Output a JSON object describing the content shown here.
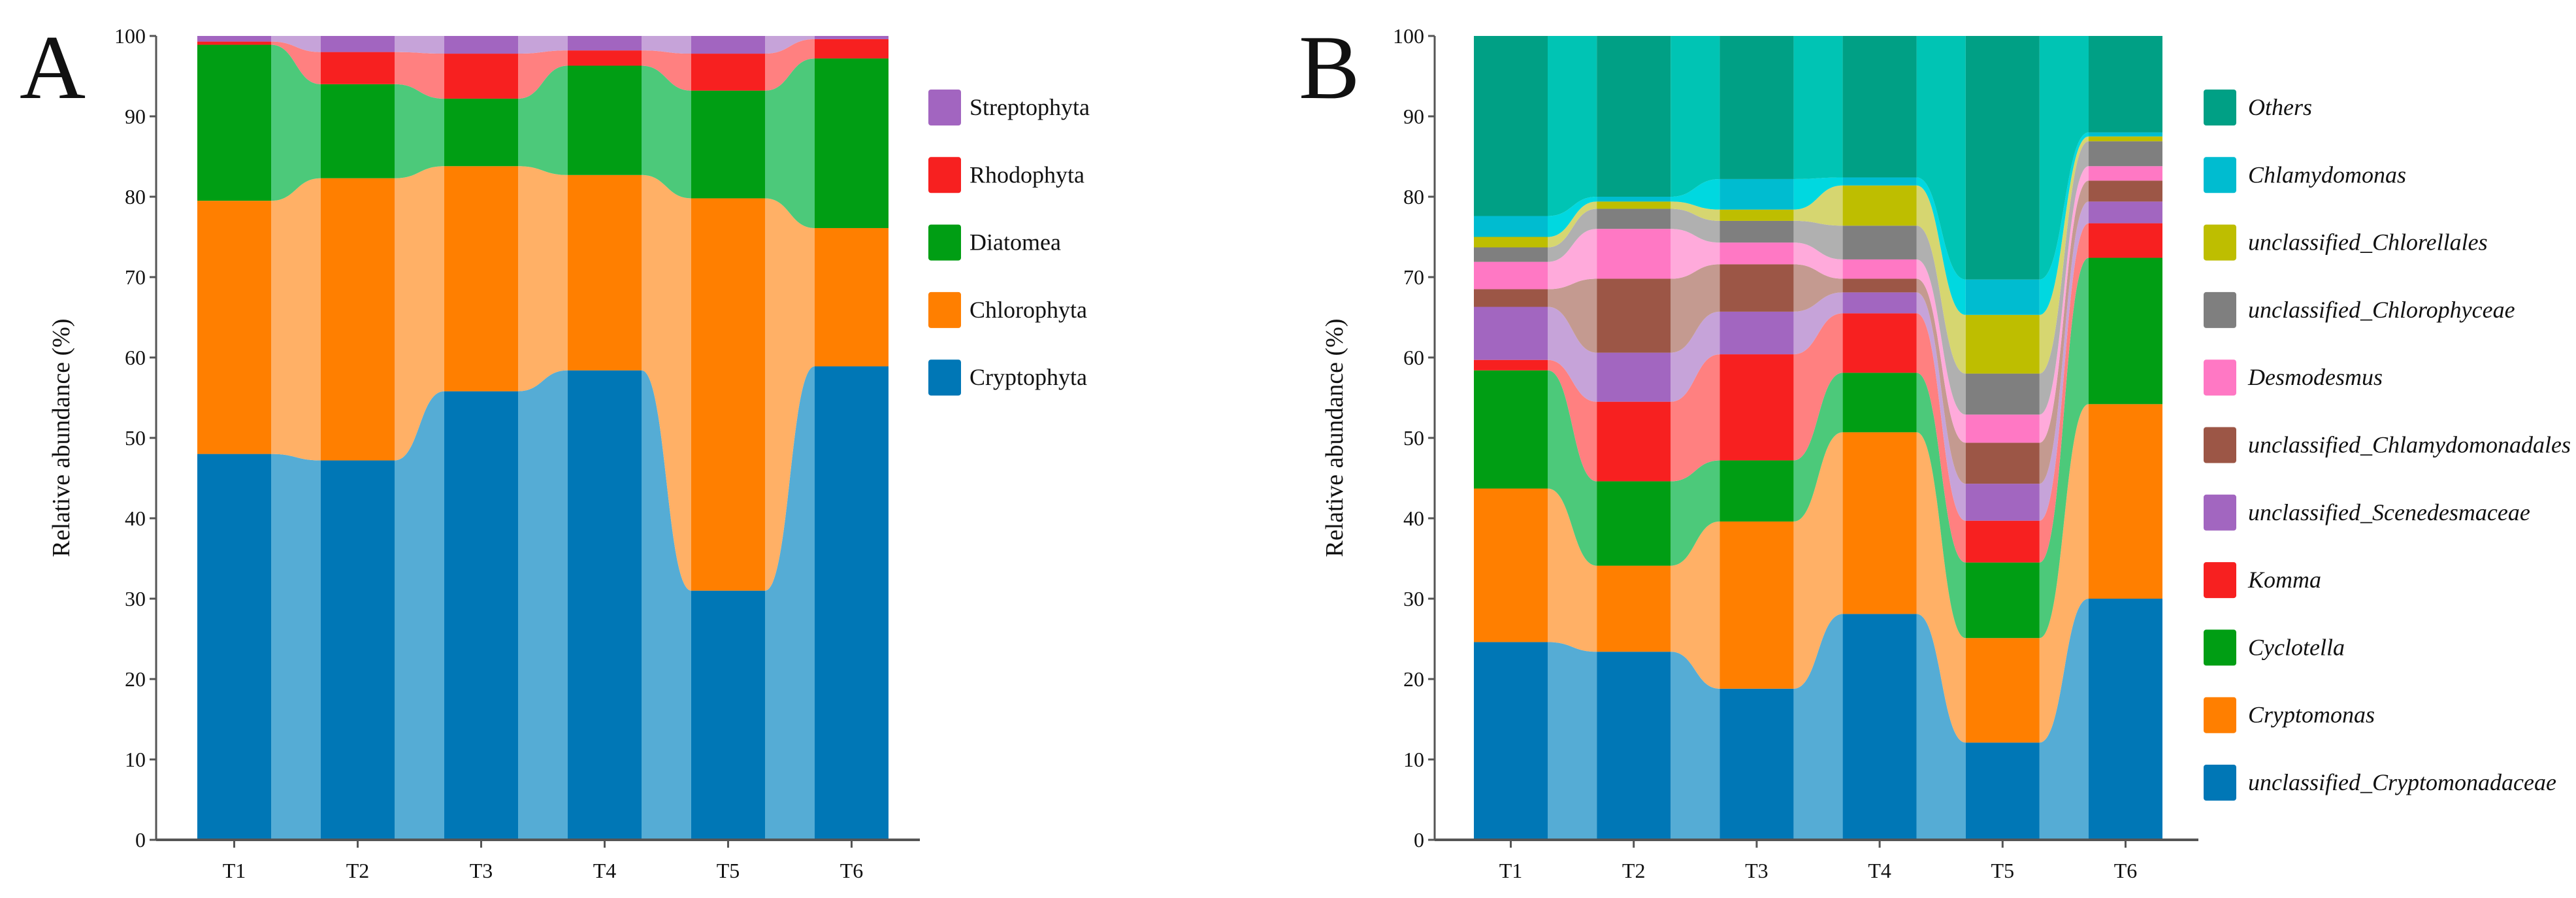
{
  "chart_data": [
    {
      "panel": "A",
      "type": "stacked-bar-alluvial",
      "ylabel": "Relative abundance (%)",
      "ylim": [
        0,
        100
      ],
      "yticks": [
        "0",
        "10",
        "20",
        "30",
        "40",
        "50",
        "60",
        "70",
        "80",
        "90",
        "100"
      ],
      "categories": [
        "T1",
        "T2",
        "T3",
        "T4",
        "T5",
        "T6"
      ],
      "legend_placement": "right",
      "series": [
        {
          "name": "Cryptophyta",
          "color": "#0077b6",
          "light": "#55acd5",
          "values": [
            48.0,
            47.2,
            55.8,
            58.4,
            31.0,
            58.9
          ]
        },
        {
          "name": "Chlorophyta",
          "color": "#ff7f00",
          "light": "#ffb066",
          "values": [
            31.5,
            35.1,
            28.0,
            24.3,
            48.8,
            17.2
          ]
        },
        {
          "name": "Diatomea",
          "color": "#009e14",
          "light": "#4cc97a",
          "values": [
            19.4,
            11.7,
            8.4,
            13.6,
            13.4,
            21.1
          ]
        },
        {
          "name": "Rhodophyta",
          "color": "#f72020",
          "light": "#ff8080",
          "values": [
            0.4,
            4.0,
            5.6,
            1.9,
            4.6,
            2.4
          ]
        },
        {
          "name": "Streptophyta",
          "color": "#a265c0",
          "light": "#c6a3d9",
          "values": [
            0.7,
            2.0,
            2.2,
            1.8,
            2.2,
            0.4
          ]
        }
      ]
    },
    {
      "panel": "B",
      "type": "stacked-bar-alluvial",
      "ylabel": "Relative abundance (%)",
      "ylim": [
        0,
        100
      ],
      "yticks": [
        "0",
        "10",
        "20",
        "30",
        "40",
        "50",
        "60",
        "70",
        "80",
        "90",
        "100"
      ],
      "categories": [
        "T1",
        "T2",
        "T3",
        "T4",
        "T5",
        "T6"
      ],
      "legend_placement": "right",
      "series": [
        {
          "name": "unclassified_Cryptomonadaceae",
          "color": "#0077b6",
          "light": "#55acd5",
          "values": [
            24.6,
            23.4,
            18.8,
            28.1,
            12.1,
            30.0
          ]
        },
        {
          "name": "Cryptomonas",
          "color": "#ff7f00",
          "light": "#ffb066",
          "values": [
            19.1,
            10.7,
            20.8,
            22.6,
            13.0,
            24.2
          ]
        },
        {
          "name": "Cyclotella",
          "color": "#009e14",
          "light": "#4cc97a",
          "values": [
            14.7,
            10.5,
            7.6,
            7.4,
            9.4,
            18.2
          ]
        },
        {
          "name": "Komma",
          "color": "#f72020",
          "light": "#ff8080",
          "values": [
            1.3,
            9.9,
            13.2,
            7.4,
            5.2,
            4.3
          ]
        },
        {
          "name": "unclassified_Scenedesmaceae",
          "color": "#a266c0",
          "light": "#c6a3d9",
          "values": [
            6.6,
            6.1,
            5.3,
            2.6,
            4.6,
            2.7
          ]
        },
        {
          "name": "unclassified_Chlamydomonadales",
          "color": "#9c5646",
          "light": "#c49a90",
          "values": [
            2.2,
            9.2,
            5.9,
            1.7,
            5.1,
            2.6
          ]
        },
        {
          "name": "Desmodesmus",
          "color": "#ff78c4",
          "light": "#ffaadb",
          "values": [
            3.4,
            6.2,
            2.7,
            2.4,
            3.5,
            1.8
          ]
        },
        {
          "name": "unclassified_Chlorophyceae",
          "color": "#7f7f7f",
          "light": "#b0b0b0",
          "values": [
            1.8,
            2.5,
            2.7,
            4.2,
            5.1,
            3.1
          ]
        },
        {
          "name": "unclassified_Chlorellales",
          "color": "#bebe00",
          "light": "#d6d670",
          "values": [
            1.3,
            0.9,
            1.4,
            5.0,
            7.3,
            0.6
          ]
        },
        {
          "name": "Chlamydomonas",
          "color": "#00bcd0",
          "light": "#00d8e0",
          "values": [
            2.6,
            0.6,
            3.8,
            1.0,
            4.4,
            0.5
          ]
        },
        {
          "name": "Others",
          "color": "#00a085",
          "light": "#00c4b4",
          "values": [
            22.4,
            20.0,
            17.8,
            17.6,
            30.3,
            12.0
          ]
        }
      ]
    }
  ]
}
